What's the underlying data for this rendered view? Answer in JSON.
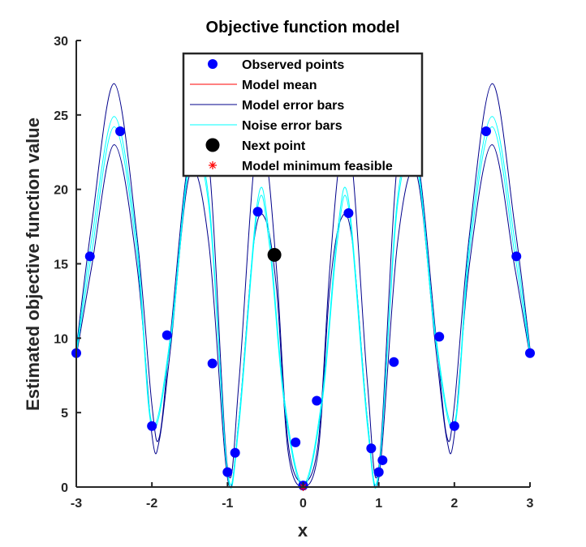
{
  "chart_data": {
    "type": "line",
    "title": "Objective function model",
    "xlabel": "x",
    "ylabel": "Estimated objective function value",
    "xlim": [
      -3,
      3
    ],
    "ylim": [
      0,
      30
    ],
    "x_ticks": [
      -3,
      -2,
      -1,
      0,
      1,
      2,
      3
    ],
    "y_ticks": [
      0,
      5,
      10,
      15,
      20,
      25,
      30
    ],
    "grid": false,
    "legend_position": "top-center",
    "series": [
      {
        "name": "Observed points",
        "kind": "scatter",
        "color": "#0000ff",
        "x": [
          -3.0,
          -2.82,
          -2.42,
          -2.0,
          -1.8,
          -1.2,
          -1.0,
          -0.9,
          -0.6,
          -0.1,
          0.0,
          0.18,
          0.6,
          0.9,
          1.0,
          1.05,
          1.2,
          1.8,
          2.0,
          2.42,
          2.82,
          3.0
        ],
        "y": [
          9.0,
          15.5,
          23.9,
          4.1,
          10.2,
          8.3,
          1.0,
          2.3,
          18.5,
          3.0,
          0.1,
          5.8,
          18.4,
          2.6,
          1.0,
          1.8,
          8.4,
          10.1,
          4.1,
          23.9,
          15.5,
          9.0
        ]
      },
      {
        "name": "Model mean",
        "kind": "line",
        "color": "#ff0000",
        "x": [
          0.0
        ],
        "y": [
          0.0
        ]
      },
      {
        "name": "Model error bars",
        "kind": "line-band",
        "color": "#00008b",
        "x": [
          -3.0,
          -2.8,
          -2.5,
          -2.2,
          -2.0,
          -1.9,
          -1.75,
          -1.5,
          -1.25,
          -1.0,
          -0.85,
          -0.65,
          -0.5,
          -0.35,
          -0.2,
          0.0,
          0.2,
          0.35,
          0.5,
          0.65,
          0.85,
          1.0,
          1.25,
          1.5,
          1.75,
          1.9,
          2.0,
          2.2,
          2.5,
          2.8,
          3.0
        ],
        "upper": [
          9.3,
          17.5,
          27.1,
          17.0,
          5.5,
          3.4,
          10.5,
          22.5,
          22.0,
          1.3,
          7.0,
          21.5,
          22.5,
          14.5,
          3.0,
          0.3,
          3.0,
          14.5,
          22.5,
          21.5,
          7.0,
          1.3,
          22.0,
          22.5,
          10.5,
          3.4,
          5.5,
          17.0,
          27.1,
          17.5,
          9.3
        ],
        "lower": [
          8.8,
          14.7,
          23.0,
          15.0,
          3.5,
          3.2,
          9.5,
          21.0,
          16.5,
          0.6,
          4.5,
          16.5,
          18.0,
          13.2,
          2.4,
          0.0,
          2.4,
          13.2,
          18.0,
          16.5,
          4.5,
          0.6,
          16.5,
          21.0,
          9.5,
          3.2,
          3.5,
          15.0,
          23.0,
          14.7,
          8.8
        ]
      },
      {
        "name": "Noise error bars",
        "kind": "line-band",
        "color": "#00ffff",
        "x": [
          -3.0,
          -2.8,
          -2.5,
          -2.2,
          -2.0,
          -1.75,
          -1.5,
          -1.25,
          -1.0,
          -0.85,
          -0.6,
          -0.45,
          -0.25,
          0.0,
          0.25,
          0.45,
          0.6,
          0.85,
          1.0,
          1.25,
          1.5,
          1.75,
          2.0,
          2.2,
          2.5,
          2.8,
          3.0
        ],
        "upper": [
          9.1,
          16.5,
          24.9,
          16.5,
          4.3,
          10.3,
          22.0,
          19.5,
          1.1,
          4.5,
          19.3,
          17.0,
          6.0,
          0.2,
          6.0,
          17.0,
          19.3,
          4.5,
          1.1,
          19.5,
          22.0,
          10.3,
          4.3,
          16.5,
          24.9,
          16.5,
          9.1
        ],
        "lower": [
          8.9,
          15.6,
          24.2,
          15.8,
          4.0,
          9.9,
          21.6,
          19.0,
          0.9,
          4.1,
          18.8,
          16.4,
          5.6,
          0.0,
          5.6,
          16.4,
          18.8,
          4.1,
          0.9,
          19.0,
          21.6,
          9.9,
          4.0,
          15.8,
          24.2,
          15.6,
          8.9
        ]
      },
      {
        "name": "Next point",
        "kind": "scatter",
        "color": "#000000",
        "x": [
          -0.38
        ],
        "y": [
          15.6
        ]
      },
      {
        "name": "Model minimum feasible",
        "kind": "scatter",
        "marker": "star",
        "color": "#ff0000",
        "x": [
          0.0
        ],
        "y": [
          0.0
        ]
      }
    ]
  }
}
